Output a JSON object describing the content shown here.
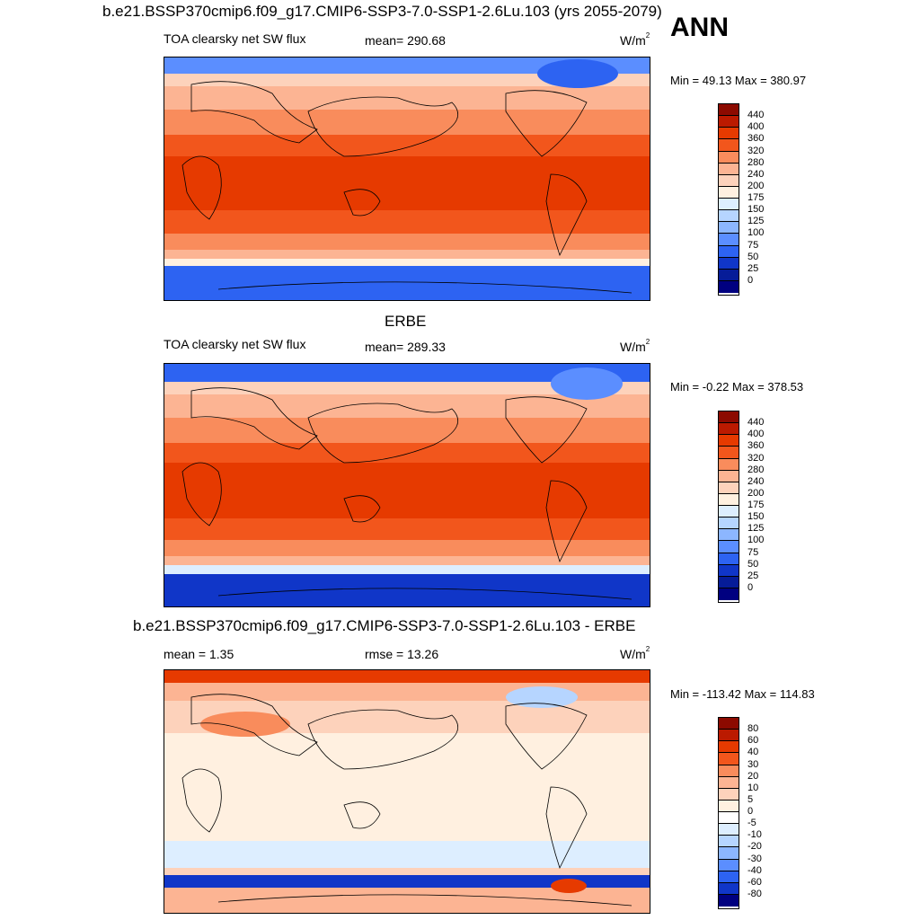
{
  "header": {
    "title": "b.e21.BSSP370cmip6.f09_g17.CMIP6-SSP3-7.0-SSP1-2.6Lu.103 (yrs 2055-2079)",
    "season": "ANN"
  },
  "panels": [
    {
      "section_title": "",
      "left_label": "TOA clearsky net SW flux",
      "center_label": "mean= 290.68",
      "unit": "W/m",
      "unit_sup": "2",
      "minmax": "Min =  49.13 Max = 380.97",
      "colorbar": {
        "levels": [
          "440",
          "400",
          "360",
          "320",
          "280",
          "240",
          "200",
          "175",
          "150",
          "125",
          "100",
          "75",
          "50",
          "25",
          "0"
        ],
        "colors": [
          "#8c0a00",
          "#bb1a00",
          "#e63a00",
          "#f2561c",
          "#f98c5c",
          "#fcb493",
          "#fdd2bb",
          "#fff0e0",
          "#ddeeff",
          "#b6d5ff",
          "#8cb6ff",
          "#5b8eff",
          "#2d63f2",
          "#1036c8",
          "#061c98",
          "#000080"
        ]
      }
    },
    {
      "section_title": "ERBE",
      "left_label": "TOA clearsky net SW flux",
      "center_label": "mean= 289.33",
      "unit": "W/m",
      "unit_sup": "2",
      "minmax": "Min =  -0.22 Max = 378.53",
      "colorbar": {
        "levels": [
          "440",
          "400",
          "360",
          "320",
          "280",
          "240",
          "200",
          "175",
          "150",
          "125",
          "100",
          "75",
          "50",
          "25",
          "0"
        ],
        "colors": [
          "#8c0a00",
          "#bb1a00",
          "#e63a00",
          "#f2561c",
          "#f98c5c",
          "#fcb493",
          "#fdd2bb",
          "#fff0e0",
          "#ddeeff",
          "#b6d5ff",
          "#8cb6ff",
          "#5b8eff",
          "#2d63f2",
          "#1036c8",
          "#061c98",
          "#000080"
        ]
      }
    },
    {
      "section_title": "b.e21.BSSP370cmip6.f09_g17.CMIP6-SSP3-7.0-SSP1-2.6Lu.103 - ERBE",
      "left_label": "mean =   1.35",
      "center_label": "rmse =  13.26",
      "unit": "W/m",
      "unit_sup": "2",
      "minmax": "Min = -113.42 Max = 114.83",
      "colorbar": {
        "levels": [
          "80",
          "60",
          "40",
          "30",
          "20",
          "10",
          "5",
          "0",
          "-5",
          "-10",
          "-20",
          "-30",
          "-40",
          "-60",
          "-80"
        ],
        "colors": [
          "#8c0a00",
          "#bb1a00",
          "#e63a00",
          "#f2561c",
          "#f98c5c",
          "#fcb493",
          "#fdd2bb",
          "#fff0e0",
          "#ffffff",
          "#ddeeff",
          "#b6d5ff",
          "#8cb6ff",
          "#5b8eff",
          "#2d63f2",
          "#1036c8",
          "#000080"
        ]
      }
    }
  ]
}
